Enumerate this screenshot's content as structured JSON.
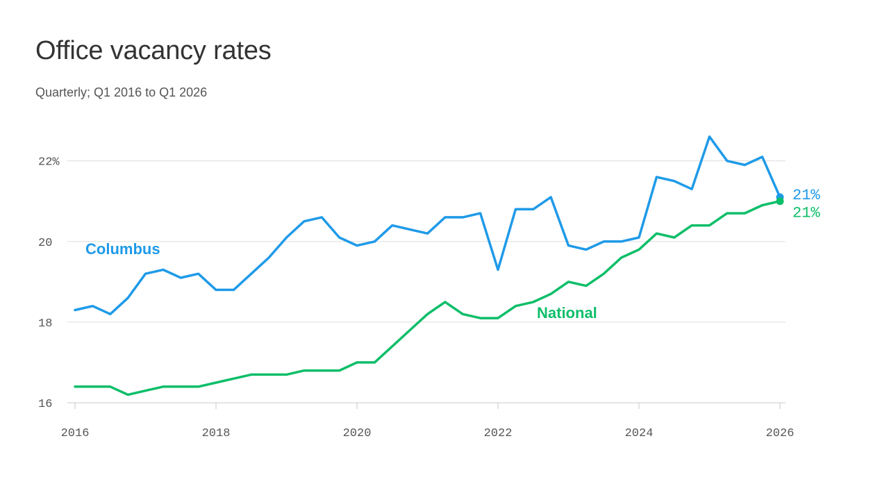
{
  "chart_data": {
    "type": "line",
    "title": "Office vacancy rates",
    "subtitle": "Quarterly; Q1 2016 to Q1 2026",
    "xlabel": "",
    "ylabel": "",
    "x_tick_values": [
      2016,
      2018,
      2020,
      2022,
      2024,
      2026
    ],
    "x_tick_labels": [
      "2016",
      "2018",
      "2020",
      "2022",
      "2024",
      "2026"
    ],
    "y_tick_values": [
      16,
      18,
      20,
      22
    ],
    "y_tick_labels": [
      "16",
      "18",
      "20",
      "22%"
    ],
    "xlim": [
      2016,
      2026
    ],
    "ylim": [
      16,
      23.2
    ],
    "grid": true,
    "x": [
      2016.0,
      2016.25,
      2016.5,
      2016.75,
      2017.0,
      2017.25,
      2017.5,
      2017.75,
      2018.0,
      2018.25,
      2018.5,
      2018.75,
      2019.0,
      2019.25,
      2019.5,
      2019.75,
      2020.0,
      2020.25,
      2020.5,
      2020.75,
      2021.0,
      2021.25,
      2021.5,
      2021.75,
      2022.0,
      2022.25,
      2022.5,
      2022.75,
      2023.0,
      2023.25,
      2023.5,
      2023.75,
      2024.0,
      2024.25,
      2024.5,
      2024.75,
      2025.0,
      2025.25,
      2025.5,
      2025.75,
      2026.0
    ],
    "series": [
      {
        "name": "Columbus",
        "color": "#1f9ae8",
        "end_label": "21%",
        "values": [
          18.3,
          18.4,
          18.2,
          18.6,
          19.2,
          19.3,
          19.1,
          19.2,
          18.8,
          18.8,
          19.2,
          19.6,
          20.1,
          20.5,
          20.6,
          20.1,
          19.9,
          20.0,
          20.4,
          20.3,
          20.2,
          20.6,
          20.6,
          20.7,
          19.3,
          20.8,
          20.8,
          21.1,
          19.9,
          19.8,
          20.0,
          20.0,
          20.1,
          21.6,
          21.5,
          21.3,
          22.6,
          22.0,
          21.9,
          22.1,
          21.1
        ]
      },
      {
        "name": "National",
        "color": "#0dbe69",
        "end_label": "21%",
        "values": [
          16.4,
          16.4,
          16.4,
          16.2,
          16.3,
          16.4,
          16.4,
          16.4,
          16.5,
          16.6,
          16.7,
          16.7,
          16.7,
          16.8,
          16.8,
          16.8,
          17.0,
          17.0,
          17.4,
          17.8,
          18.2,
          18.5,
          18.2,
          18.1,
          18.1,
          18.4,
          18.5,
          18.7,
          19.0,
          18.9,
          19.2,
          19.6,
          19.8,
          20.2,
          20.1,
          20.4,
          20.4,
          20.7,
          20.7,
          20.9,
          21.0
        ]
      }
    ]
  }
}
